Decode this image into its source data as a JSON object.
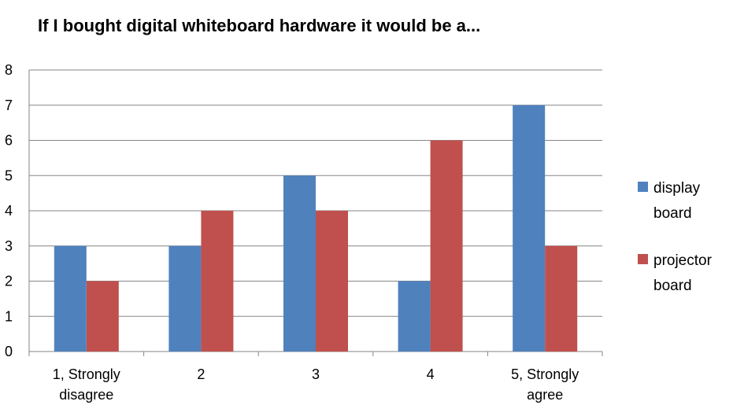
{
  "chart_data": {
    "type": "bar",
    "title": "If I bought digital whiteboard hardware it would be a...",
    "xlabel": "",
    "ylabel": "",
    "categories": [
      [
        "1, Strongly",
        "disagree"
      ],
      [
        "2"
      ],
      [
        "3"
      ],
      [
        "4"
      ],
      [
        "5, Strongly",
        "agree"
      ]
    ],
    "series": [
      {
        "name": [
          "display",
          "board"
        ],
        "color": "#4F81BD",
        "values": [
          3,
          3,
          5,
          2,
          7
        ]
      },
      {
        "name": [
          "projector",
          "board"
        ],
        "color": "#C0504D",
        "values": [
          2,
          4,
          4,
          6,
          3
        ]
      }
    ],
    "ylim": [
      0,
      8
    ],
    "yticks": [
      "0",
      "1",
      "2",
      "3",
      "4",
      "5",
      "6",
      "7",
      "8"
    ],
    "grid": true,
    "legend_position": "right"
  }
}
